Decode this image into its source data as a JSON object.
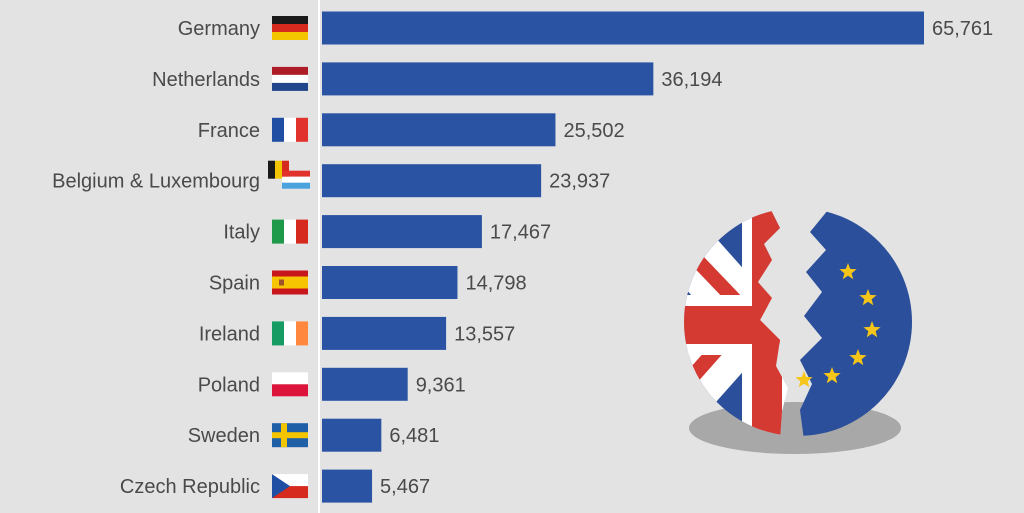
{
  "chart_data": {
    "type": "bar",
    "orientation": "horizontal",
    "categories": [
      "Germany",
      "Netherlands",
      "France",
      "Belgium & Luxembourg",
      "Italy",
      "Spain",
      "Ireland",
      "Poland",
      "Sweden",
      "Czech Republic"
    ],
    "values": [
      65761,
      36194,
      25502,
      23937,
      17467,
      14798,
      13557,
      9361,
      6481,
      5467
    ],
    "value_labels": [
      "65,761",
      "36,194",
      "25,502",
      "23,937",
      "17,467",
      "14,798",
      "13,557",
      "9,361",
      "6,481",
      "5,467"
    ],
    "xlim": [
      0,
      65761
    ],
    "grid": false,
    "legend": "none",
    "bar_color": "#2a53a3"
  },
  "colors": {
    "background": "#e3e3e3",
    "bar": "#2a53a3",
    "text": "#4a4a4a",
    "axis": "#ffffff"
  },
  "flags": [
    "flag-germany-icon",
    "flag-netherlands-icon",
    "flag-france-icon",
    "flag-belgium-luxembourg-icon",
    "flag-italy-icon",
    "flag-spain-icon",
    "flag-ireland-icon",
    "flag-poland-icon",
    "flag-sweden-icon",
    "flag-czech-republic-icon"
  ],
  "illustration": "broken-uk-eu-flag-icon"
}
